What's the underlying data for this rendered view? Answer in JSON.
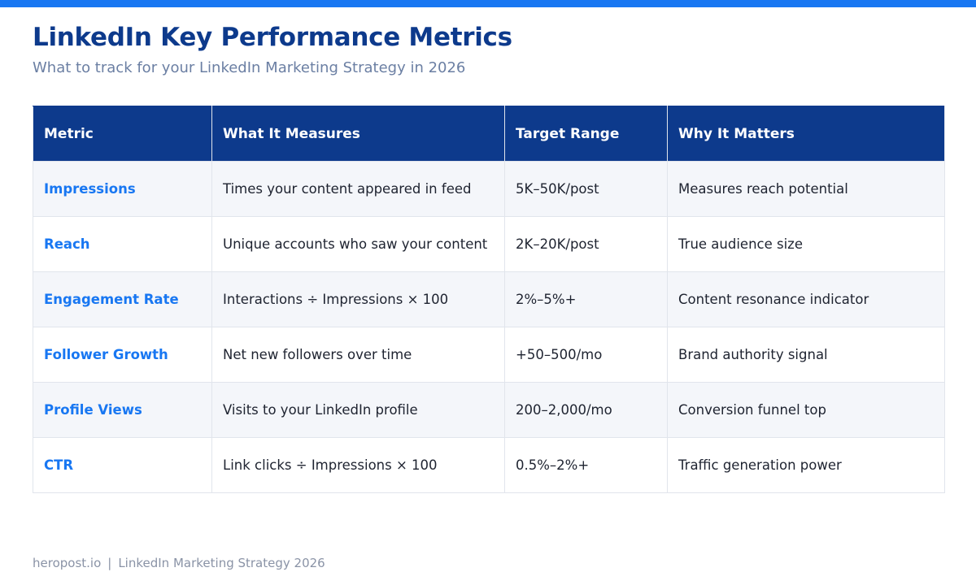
{
  "header": {
    "title": "LinkedIn Key Performance Metrics",
    "subtitle": "What to track for your LinkedIn Marketing Strategy in 2026"
  },
  "table": {
    "columns": [
      "Metric",
      "What It Measures",
      "Target Range",
      "Why It Matters"
    ],
    "rows": [
      {
        "metric": "Impressions",
        "measures": "Times your content appeared in feed",
        "target": "5K–50K/post",
        "why": "Measures reach potential"
      },
      {
        "metric": "Reach",
        "measures": "Unique accounts who saw your content",
        "target": "2K–20K/post",
        "why": "True audience size"
      },
      {
        "metric": "Engagement Rate",
        "measures": "Interactions ÷ Impressions × 100",
        "target": "2%–5%+",
        "why": "Content resonance indicator"
      },
      {
        "metric": "Follower Growth",
        "measures": "Net new followers over time",
        "target": "+50–500/mo",
        "why": "Brand authority signal"
      },
      {
        "metric": "Profile Views",
        "measures": "Visits to your LinkedIn profile",
        "target": "200–2,000/mo",
        "why": "Conversion funnel top"
      },
      {
        "metric": "CTR",
        "measures": "Link clicks ÷ Impressions × 100",
        "target": "0.5%–2%+",
        "why": "Traffic generation power"
      }
    ]
  },
  "footer": {
    "site": "heropost.io",
    "separator": "|",
    "text": "LinkedIn Marketing Strategy 2026"
  },
  "colors": {
    "accent_bar": "#1877f2",
    "header_bg": "#0d3a8c",
    "metric_text": "#1877f2"
  }
}
